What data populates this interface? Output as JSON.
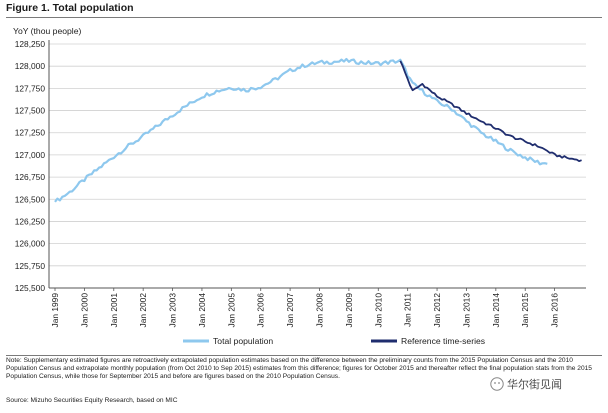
{
  "figure_title": "Figure 1. Total population",
  "chart_data": {
    "type": "line",
    "title": "Figure 1. Total population",
    "ylabel": "YoY (thou people)",
    "xlabel": "",
    "ylim": [
      125500,
      128250
    ],
    "yticks": [
      125500,
      125750,
      126000,
      126250,
      126500,
      126750,
      127000,
      127250,
      127500,
      127750,
      128000,
      128250
    ],
    "ytick_labels": [
      "125,500",
      "125,750",
      "126,000",
      "126,250",
      "126,500",
      "126,750",
      "127,000",
      "127,250",
      "127,500",
      "127,750",
      "128,000",
      "128,250"
    ],
    "xticks": [
      "Jan 1999",
      "Jan 2000",
      "Jan 2001",
      "Jan 2002",
      "Jan 2003",
      "Jan 2004",
      "Jan 2005",
      "Jan 2006",
      "Jan 2007",
      "Jan 2008",
      "Jan 2009",
      "Jan 2010",
      "Jan 2011",
      "Jan 2012",
      "Jan 2013",
      "Jan 2014",
      "Jan 2015",
      "Jan 2016"
    ],
    "grid": "horizontal",
    "legend_position": "bottom",
    "series": [
      {
        "name": "Total population",
        "color": "#8ec8ee",
        "x": [
          "1999-01",
          "1999-07",
          "2000-01",
          "2000-07",
          "2001-01",
          "2001-07",
          "2002-01",
          "2002-07",
          "2003-01",
          "2003-07",
          "2004-01",
          "2004-07",
          "2005-01",
          "2005-07",
          "2006-01",
          "2006-07",
          "2007-01",
          "2007-07",
          "2008-01",
          "2008-07",
          "2009-01",
          "2009-07",
          "2010-01",
          "2010-07",
          "2010-10",
          "2011-03",
          "2011-07",
          "2012-01",
          "2012-07",
          "2013-01",
          "2013-07",
          "2014-01",
          "2014-07",
          "2015-01",
          "2015-07",
          "2015-10"
        ],
        "values": [
          126470,
          126580,
          126720,
          126850,
          126980,
          127100,
          127210,
          127330,
          127450,
          127560,
          127660,
          127720,
          127760,
          127730,
          127770,
          127850,
          127950,
          128010,
          128040,
          128050,
          128060,
          128040,
          128030,
          128050,
          128060,
          127800,
          127720,
          127600,
          127520,
          127380,
          127250,
          127150,
          127050,
          126970,
          126910,
          126900
        ]
      },
      {
        "name": "Reference time-series",
        "color": "#1f2d6e",
        "x": [
          "2010-10",
          "2011-03",
          "2011-07",
          "2012-01",
          "2012-07",
          "2013-01",
          "2013-07",
          "2014-01",
          "2014-07",
          "2015-01",
          "2015-07",
          "2016-01",
          "2016-07",
          "2016-12"
        ],
        "values": [
          128060,
          127720,
          127800,
          127660,
          127570,
          127470,
          127380,
          127300,
          127210,
          127150,
          127090,
          127000,
          126960,
          126940
        ]
      }
    ]
  },
  "note": "Note: Supplementary estimated figures are retroactively extrapolated population estimates based on the difference between the preliminary counts from the 2015 Population Census and the 2010 Population Census and extrapolate monthly population (from Oct 2010 to Sep 2015) estimates from this difference; figures for October 2015 and thereafter reflect the final population stats from the 2015 Population Census, while those for September 2015 and before are figures based on the 2010 Population Census.",
  "source": "Source: Mizuho Securities Equity Research, based on MIC",
  "watermark": "华尔街见闻"
}
